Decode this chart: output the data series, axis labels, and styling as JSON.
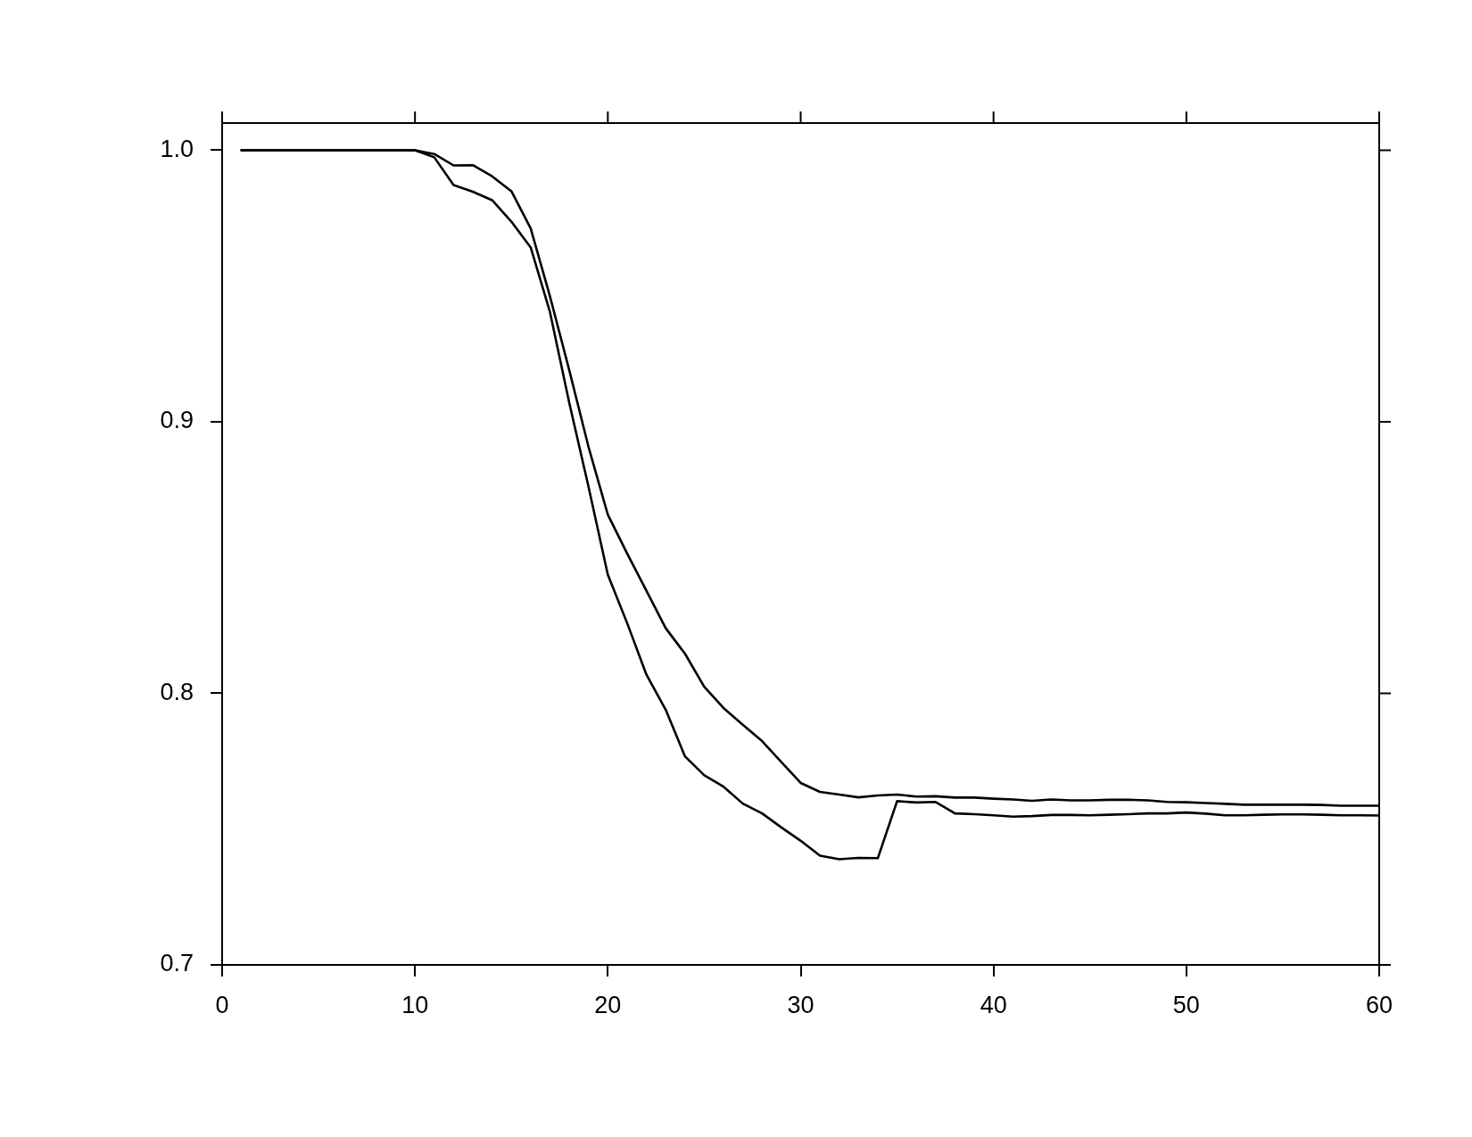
{
  "chart_data": {
    "type": "line",
    "x": [
      1,
      2,
      3,
      4,
      5,
      6,
      7,
      8,
      9,
      10,
      11,
      12,
      13,
      14,
      15,
      16,
      17,
      18,
      19,
      20,
      21,
      22,
      23,
      24,
      25,
      26,
      27,
      28,
      29,
      30,
      31,
      32,
      33,
      34,
      35,
      36,
      37,
      38,
      39,
      40,
      41,
      42,
      43,
      44,
      45,
      46,
      47,
      48,
      49,
      50,
      51,
      52,
      53,
      54,
      55,
      56,
      57,
      58,
      59,
      60
    ],
    "series": [
      {
        "color": "#000000",
        "values": [
          1,
          1,
          1,
          1,
          1,
          1,
          1,
          1,
          1,
          1,
          0.9986,
          0.9944,
          0.9945,
          0.9904,
          0.9849,
          0.9712,
          0.9462,
          0.919,
          0.8907,
          0.8658,
          0.8515,
          0.8378,
          0.824,
          0.8146,
          0.8024,
          0.7946,
          0.7884,
          0.7824,
          0.7747,
          0.767,
          0.7637,
          0.7627,
          0.7617,
          0.7624,
          0.7627,
          0.762,
          0.7621,
          0.7616,
          0.7616,
          0.7612,
          0.7609,
          0.7604,
          0.7609,
          0.7606,
          0.7606,
          0.7608,
          0.7608,
          0.7606,
          0.76,
          0.7599,
          0.7596,
          0.7593,
          0.759,
          0.759,
          0.759,
          0.759,
          0.7589,
          0.7586,
          0.7586,
          0.7586
        ]
      },
      {
        "color": "#000000",
        "values": [
          1,
          1,
          1,
          1,
          1,
          1,
          1,
          1,
          1,
          1,
          0.9974,
          0.9872,
          0.9847,
          0.9816,
          0.9737,
          0.9642,
          0.9404,
          0.907,
          0.876,
          0.8437,
          0.8259,
          0.8069,
          0.794,
          0.7768,
          0.7698,
          0.7656,
          0.7594,
          0.7558,
          0.7506,
          0.7457,
          0.7402,
          0.7389,
          0.7394,
          0.7393,
          0.7603,
          0.7598,
          0.76,
          0.7558,
          0.7555,
          0.7551,
          0.7546,
          0.7548,
          0.7552,
          0.7552,
          0.7551,
          0.7553,
          0.7555,
          0.7558,
          0.7558,
          0.7561,
          0.7557,
          0.7551,
          0.7551,
          0.7553,
          0.7554,
          0.7554,
          0.7553,
          0.7551,
          0.7551,
          0.755
        ]
      }
    ],
    "xlim": [
      0,
      60
    ],
    "xticks": [
      0,
      10,
      20,
      30,
      40,
      50,
      60
    ],
    "ylim": [
      0.7,
      1.01
    ],
    "yticks": [
      0.7,
      0.8,
      0.9,
      {
        "value": 1,
        "label": "1.0"
      }
    ]
  }
}
